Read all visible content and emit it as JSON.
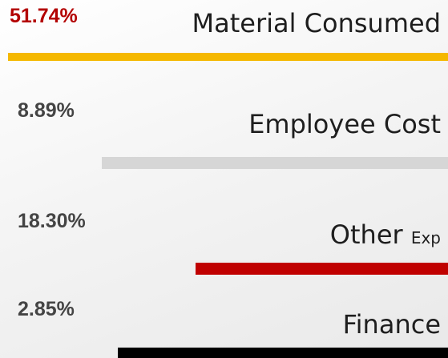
{
  "items": [
    {
      "percent": "51.74%",
      "label": "Material Consumed"
    },
    {
      "percent": "8.89%",
      "label": "Employee Cost"
    },
    {
      "percent": "18.30%",
      "label": "Other",
      "suffix": "Exp"
    },
    {
      "percent": "2.85%",
      "label": "Finance"
    }
  ]
}
